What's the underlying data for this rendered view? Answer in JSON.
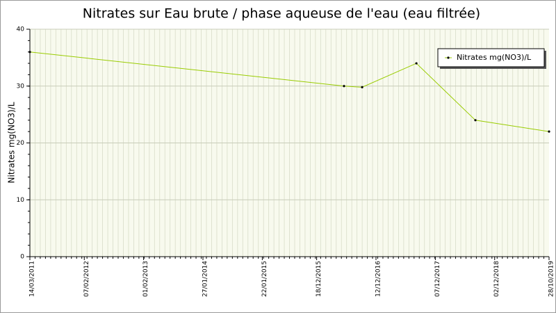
{
  "chart_data": {
    "type": "line",
    "title": "Nitrates sur Eau brute / phase aqueuse de l'eau (eau filtrée)",
    "y_label": "Nitrates mg(NO3)/L",
    "x": [
      "2011-03-14",
      "2016-06-01",
      "2016-09-19",
      "2017-08-14",
      "2018-08-07",
      "2019-10-28"
    ],
    "series": [
      {
        "name": "Nitrates mg(NO3)/L",
        "color": "#99cc00",
        "values": [
          36,
          30,
          29.8,
          34,
          24,
          22
        ]
      }
    ],
    "xlim": [
      "2011-03-14",
      "2019-10-28"
    ],
    "xticks": [
      {
        "value": "2011-03-14",
        "label": "14/03/2011"
      },
      {
        "value": "2012-02-07",
        "label": "07/02/2012"
      },
      {
        "value": "2013-02-01",
        "label": "01/02/2013"
      },
      {
        "value": "2014-01-27",
        "label": "27/01/2014"
      },
      {
        "value": "2015-01-22",
        "label": "22/01/2015"
      },
      {
        "value": "2015-12-18",
        "label": "18/12/2015"
      },
      {
        "value": "2016-12-12",
        "label": "12/12/2016"
      },
      {
        "value": "2017-12-07",
        "label": "07/12/2017"
      },
      {
        "value": "2018-12-02",
        "label": "02/12/2018"
      },
      {
        "value": "2019-10-28",
        "label": "28/10/2019"
      }
    ],
    "ylim": [
      0,
      40
    ],
    "yticks": [
      0,
      10,
      20,
      30,
      40
    ],
    "grid": true,
    "legend": "upper right"
  }
}
